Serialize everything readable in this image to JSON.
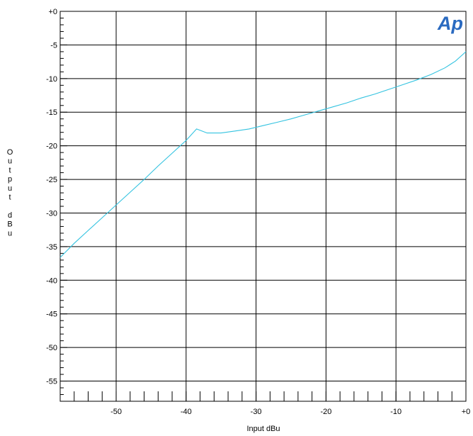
{
  "chart_data": {
    "type": "line",
    "title": "",
    "xlabel": "Input dBu",
    "ylabel": "Output dBu",
    "xlim": [
      -58,
      0
    ],
    "ylim": [
      -58,
      0
    ],
    "x_ticks": [
      {
        "value": -50,
        "label": "-50"
      },
      {
        "value": -40,
        "label": "-40"
      },
      {
        "value": -30,
        "label": "-30"
      },
      {
        "value": -20,
        "label": "-20"
      },
      {
        "value": -10,
        "label": "-10"
      },
      {
        "value": 0,
        "label": "+0"
      }
    ],
    "y_ticks": [
      {
        "value": 0,
        "label": "+0"
      },
      {
        "value": -5,
        "label": "-5"
      },
      {
        "value": -10,
        "label": "-10"
      },
      {
        "value": -15,
        "label": "-15"
      },
      {
        "value": -20,
        "label": "-20"
      },
      {
        "value": -25,
        "label": "-25"
      },
      {
        "value": -30,
        "label": "-30"
      },
      {
        "value": -35,
        "label": "-35"
      },
      {
        "value": -40,
        "label": "-40"
      },
      {
        "value": -45,
        "label": "-45"
      },
      {
        "value": -50,
        "label": "-50"
      },
      {
        "value": -55,
        "label": "-55"
      }
    ],
    "grid": true,
    "series": [
      {
        "color": "#33c3e0",
        "x": [
          -58,
          -56,
          -54,
          -52,
          -50,
          -48,
          -46,
          -44,
          -42,
          -40,
          -38.5,
          -37,
          -35,
          -33,
          -31,
          -29,
          -27,
          -25,
          -23,
          -21,
          -19,
          -17,
          -15,
          -13,
          -11,
          -9,
          -7,
          -5,
          -3,
          -1.5,
          0
        ],
        "y": [
          -36.6,
          -34.5,
          -32.6,
          -30.7,
          -28.8,
          -26.9,
          -25.0,
          -23.0,
          -21.1,
          -19.2,
          -17.5,
          -18.1,
          -18.1,
          -17.8,
          -17.5,
          -17.0,
          -16.5,
          -16.0,
          -15.4,
          -14.8,
          -14.2,
          -13.6,
          -12.9,
          -12.3,
          -11.6,
          -10.9,
          -10.2,
          -9.4,
          -8.4,
          -7.4,
          -6.0
        ]
      }
    ]
  },
  "logo": {
    "text": "Ap",
    "color": "#2a6ac0"
  }
}
